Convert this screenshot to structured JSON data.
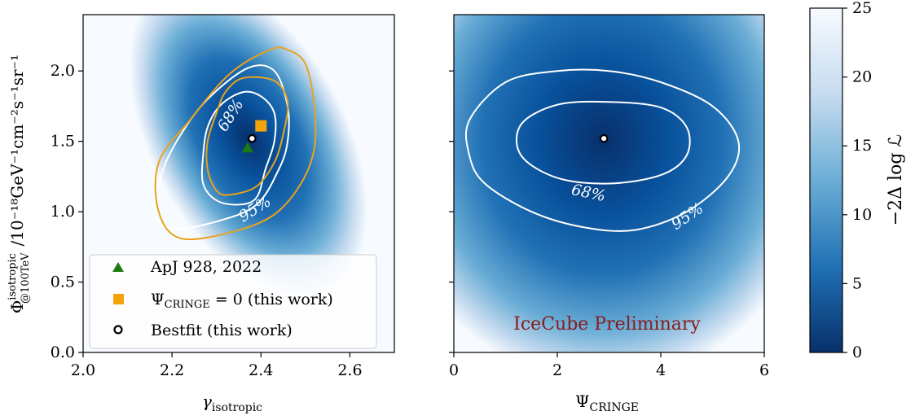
{
  "chart_data": [
    {
      "type": "heatmap",
      "panel": "left",
      "xlabel": "γ",
      "xlabel_sub": "isotropic",
      "ylabel_main": "Φ",
      "ylabel_sup": "isotropic",
      "ylabel_sub": "@100TeV",
      "ylabel_units": "/10⁻¹⁸GeV⁻¹cm⁻²s⁻¹sr⁻¹",
      "xlim": [
        2.0,
        2.7
      ],
      "ylim": [
        0.0,
        2.4
      ],
      "xticks": [
        "2.0",
        "2.2",
        "2.4",
        "2.6"
      ],
      "xtick_values": [
        2.0,
        2.2,
        2.4,
        2.6
      ],
      "yticks": [
        "0.0",
        "0.5",
        "1.0",
        "1.5",
        "2.0"
      ],
      "ytick_values": [
        0.0,
        0.5,
        1.0,
        1.5,
        2.0
      ],
      "contour_labels": [
        "68%",
        "95%"
      ],
      "contours": {
        "white_68": [
          [
            2.35,
            1.05
          ],
          [
            2.39,
            1.1
          ],
          [
            2.41,
            1.3
          ],
          [
            2.43,
            1.5
          ],
          [
            2.43,
            1.7
          ],
          [
            2.4,
            1.82
          ],
          [
            2.36,
            1.85
          ],
          [
            2.31,
            1.76
          ],
          [
            2.28,
            1.6
          ],
          [
            2.27,
            1.4
          ],
          [
            2.27,
            1.2
          ],
          [
            2.3,
            1.08
          ]
        ],
        "white_95": [
          [
            2.2,
            0.88
          ],
          [
            2.3,
            0.93
          ],
          [
            2.39,
            1.05
          ],
          [
            2.44,
            1.3
          ],
          [
            2.46,
            1.5
          ],
          [
            2.46,
            1.75
          ],
          [
            2.43,
            2.0
          ],
          [
            2.37,
            2.02
          ],
          [
            2.28,
            1.8
          ],
          [
            2.22,
            1.55
          ],
          [
            2.18,
            1.3
          ],
          [
            2.16,
            1.0
          ]
        ],
        "orange_68": [
          [
            2.33,
            1.12
          ],
          [
            2.39,
            1.18
          ],
          [
            2.43,
            1.35
          ],
          [
            2.45,
            1.55
          ],
          [
            2.46,
            1.78
          ],
          [
            2.43,
            1.93
          ],
          [
            2.36,
            1.95
          ],
          [
            2.32,
            1.85
          ],
          [
            2.3,
            1.7
          ],
          [
            2.28,
            1.5
          ],
          [
            2.28,
            1.3
          ],
          [
            2.3,
            1.15
          ]
        ],
        "orange_95": [
          [
            2.22,
            0.81
          ],
          [
            2.34,
            0.86
          ],
          [
            2.43,
            0.98
          ],
          [
            2.49,
            1.2
          ],
          [
            2.52,
            1.45
          ],
          [
            2.52,
            1.75
          ],
          [
            2.5,
            2.05
          ],
          [
            2.46,
            2.15
          ],
          [
            2.42,
            2.15
          ],
          [
            2.33,
            1.98
          ],
          [
            2.24,
            1.65
          ],
          [
            2.17,
            1.35
          ],
          [
            2.17,
            1.0
          ]
        ]
      },
      "points": [
        {
          "name": "ApJ 928, 2022",
          "x": 2.37,
          "y": 1.45,
          "color": "#1e7a12",
          "marker": "triangle"
        },
        {
          "name": "Ψ_CRINGE = 0 (this work)",
          "x": 2.4,
          "y": 1.61,
          "color": "#f5a30a",
          "marker": "square"
        },
        {
          "name": "Bestfit (this work)",
          "x": 2.38,
          "y": 1.52,
          "color": "#ffffff",
          "marker": "circle"
        }
      ],
      "legend": {
        "placement": "lower-left",
        "entries": [
          {
            "label": "ApJ 928, 2022",
            "marker": "triangle",
            "color": "#1e7a12"
          },
          {
            "label_main": "Ψ",
            "label_sub": "CRINGE",
            "label_rest": " = 0 (this work)",
            "marker": "square",
            "color": "#f5a30a"
          },
          {
            "label": "Bestfit (this work)",
            "marker": "circle",
            "color": "#ffffff"
          }
        ]
      },
      "colors": {
        "contour_white": "#ffffff",
        "contour_orange": "#e8a21e"
      }
    },
    {
      "type": "heatmap",
      "panel": "right",
      "xlabel": "Ψ",
      "xlabel_sub": "CRINGE",
      "xlim": [
        0,
        6
      ],
      "ylim": [
        0.0,
        2.4
      ],
      "xticks": [
        "0",
        "2",
        "4",
        "6"
      ],
      "xtick_values": [
        0,
        2,
        4,
        6
      ],
      "contour_labels": [
        "68%",
        "95%"
      ],
      "contours": {
        "white_68": [
          [
            1.3,
            1.62
          ],
          [
            2.0,
            1.76
          ],
          [
            3.0,
            1.78
          ],
          [
            4.0,
            1.74
          ],
          [
            4.5,
            1.6
          ],
          [
            4.5,
            1.4
          ],
          [
            4.0,
            1.26
          ],
          [
            3.0,
            1.2
          ],
          [
            2.0,
            1.24
          ],
          [
            1.3,
            1.4
          ]
        ],
        "white_95": [
          [
            0.3,
            1.65
          ],
          [
            1.0,
            1.92
          ],
          [
            2.0,
            2.0
          ],
          [
            3.0,
            2.0
          ],
          [
            4.0,
            1.92
          ],
          [
            5.0,
            1.75
          ],
          [
            5.5,
            1.5
          ],
          [
            5.3,
            1.25
          ],
          [
            4.5,
            1.0
          ],
          [
            3.5,
            0.87
          ],
          [
            2.5,
            0.89
          ],
          [
            1.5,
            1.0
          ],
          [
            0.6,
            1.2
          ],
          [
            0.3,
            1.4
          ]
        ]
      },
      "points": [
        {
          "name": "Bestfit (this work)",
          "x": 2.9,
          "y": 1.52,
          "color": "#ffffff",
          "marker": "circle"
        }
      ],
      "annotation": "IceCube Preliminary",
      "colors": {
        "annotation": "#8b1a1a"
      }
    }
  ],
  "colorbar": {
    "label": "−2Δ log ℒ",
    "range": [
      0,
      25
    ],
    "ticks": [
      "0",
      "5",
      "10",
      "15",
      "20",
      "25"
    ],
    "tick_values": [
      0,
      5,
      10,
      15,
      20,
      25
    ],
    "cmap": "Blues_r",
    "colors": {
      "low": "#08306b",
      "mid": "#4292c6",
      "high": "#f7fbff"
    }
  }
}
